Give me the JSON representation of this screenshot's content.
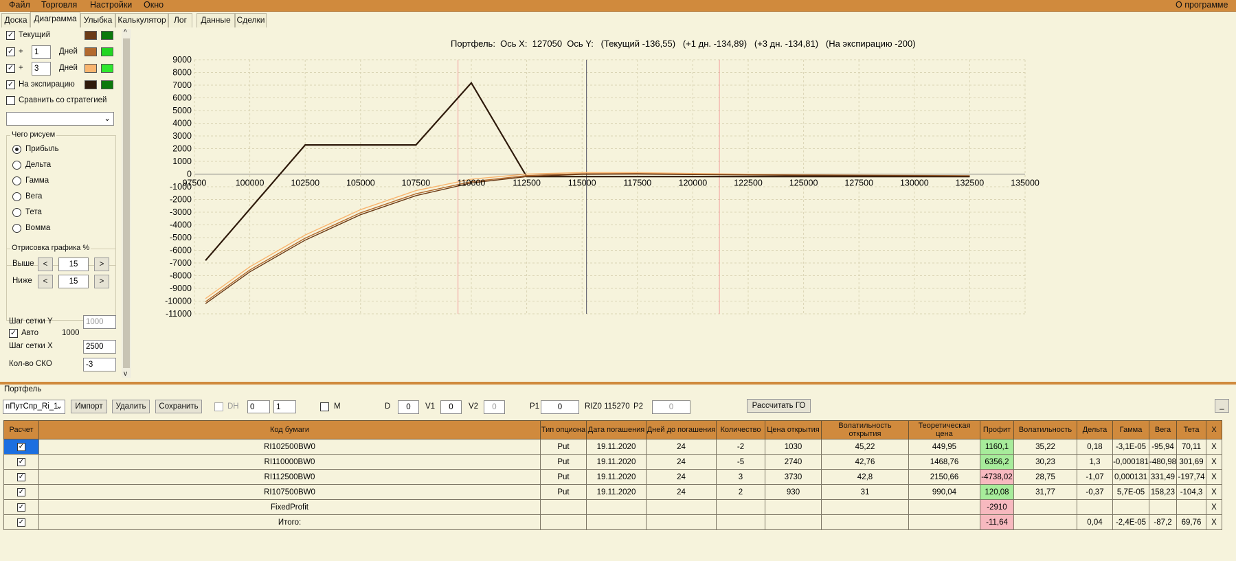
{
  "menu": {
    "items": [
      "Файл",
      "Торговля",
      "Настройки",
      "Окно"
    ],
    "about": "О программе"
  },
  "tabs": [
    "Доска",
    "Диаграмма",
    "Улыбка",
    "Калькулятор",
    "Лог",
    "Данные",
    "Сделки"
  ],
  "left": {
    "current": "Текущий",
    "plus": "+",
    "days": "Дней",
    "d1": "1",
    "d3": "3",
    "expiry": "На экспирацию",
    "compare": "Сравнить со стратегией",
    "draw_group": "Чего рисуем",
    "radios": [
      "Прибыль",
      "Дельта",
      "Гамма",
      "Вега",
      "Тета",
      "Вомма"
    ],
    "plot_group": "Отрисовка графика %",
    "above": "Выше",
    "below": "Ниже",
    "above_val": "15",
    "below_val": "15",
    "lt": "<",
    "gt": ">",
    "gridY": "Шаг сетки Y",
    "gridY_val": "1000",
    "auto": "Авто",
    "auto_val": "1000",
    "gridX": "Шаг сетки X",
    "gridX_val": "2500",
    "sko": "Кол-во СКО",
    "sko_val": "-3"
  },
  "colors": {
    "accent": "#d08a3d",
    "current": "#6b3b17",
    "d1": "#b36a2e",
    "d3": "#f9b56f",
    "expiry": "#2e1a0b",
    "green": "#0c7a0c",
    "lightgreen": "#2ee82e"
  },
  "chart_header": "Портфель:  Ось Х:  127050  Ось Y:   (Текущий -136,55)   (+1 дн. -134,89)   (+3 дн. -134,81)   (На экспирацию -200)",
  "chart_data": {
    "type": "line",
    "x_ticks": [
      97500,
      100000,
      102500,
      105000,
      107500,
      110000,
      112500,
      115000,
      117500,
      120000,
      122500,
      125000,
      127500,
      130000,
      132500,
      135000
    ],
    "y_ticks": [
      9000,
      8000,
      7000,
      6000,
      5000,
      4000,
      3000,
      2000,
      1000,
      0,
      -1000,
      -2000,
      -3000,
      -4000,
      -5000,
      -6000,
      -7000,
      -8000,
      -9000,
      -10000,
      -11000
    ],
    "xlim": [
      97500,
      135000
    ],
    "ylim": [
      -11000,
      9000
    ],
    "red_lines": [
      109400,
      121200
    ],
    "cursor_x": 115200,
    "series": [
      {
        "key": "expiry",
        "x": [
          98000,
          102500,
          107500,
          110000,
          112500,
          132500
        ],
        "y": [
          -6800,
          2290,
          2290,
          7180,
          -200,
          -200
        ]
      },
      {
        "key": "d3",
        "x": [
          98000,
          100000,
          102500,
          105000,
          107500,
          110000,
          112500,
          115000,
          117500,
          120000,
          125000,
          132500
        ],
        "y": [
          -9800,
          -7300,
          -4800,
          -2800,
          -1300,
          -400,
          0,
          120,
          120,
          40,
          -60,
          -130
        ]
      },
      {
        "key": "d1",
        "x": [
          98000,
          100000,
          102500,
          105000,
          107500,
          110000,
          112500,
          115000,
          117500,
          120000,
          125000,
          132500
        ],
        "y": [
          -10050,
          -7550,
          -5050,
          -3050,
          -1550,
          -600,
          -120,
          30,
          40,
          -20,
          -90,
          -140
        ]
      },
      {
        "key": "current",
        "x": [
          98000,
          100000,
          102500,
          105000,
          107500,
          110000,
          112500,
          115000,
          117500,
          120000,
          125000,
          132500
        ],
        "y": [
          -10200,
          -7700,
          -5200,
          -3200,
          -1700,
          -700,
          -200,
          -20,
          0,
          -40,
          -110,
          -150
        ]
      }
    ]
  },
  "portfolio": {
    "label": "Портфель",
    "combo": "пПутСпр_Ri_1",
    "import": "Импорт",
    "delete": "Удалить",
    "save": "Сохранить",
    "dh": "DH",
    "s1": "0",
    "s2": "1",
    "m": "M",
    "d_label": "D",
    "d": "0",
    "v1_label": "V1",
    "v1": "0",
    "v2_label": "V2",
    "v2": "0",
    "p1_label": "P1",
    "p1": "0",
    "riz": "RIZ0 115270",
    "p2_label": "P2",
    "p2": "0",
    "calc": "Рассчитать ГО",
    "min": "_"
  },
  "table": {
    "headers": [
      "Расчет",
      "Код бумаги",
      "Тип опциона",
      "Дата погашения",
      "Дней до погашения",
      "Количество",
      "Цена открытия",
      "Волатильность открытия",
      "Теоретическая цена",
      "Профит",
      "Волатильность",
      "Дельта",
      "Гамма",
      "Вега",
      "Тета",
      "X"
    ],
    "rows": [
      [
        "RI102500BW0",
        "Put",
        "19.11.2020",
        "24",
        "-2",
        "1030",
        "45,22",
        "449,95",
        "1160,1",
        "35,22",
        "0,18",
        "-3,1E-05",
        "-95,94",
        "70,11",
        "X"
      ],
      [
        "RI110000BW0",
        "Put",
        "19.11.2020",
        "24",
        "-5",
        "2740",
        "42,76",
        "1468,76",
        "6356,2",
        "30,23",
        "1,3",
        "-0,000181",
        "-480,98",
        "301,69",
        "X"
      ],
      [
        "RI112500BW0",
        "Put",
        "19.11.2020",
        "24",
        "3",
        "3730",
        "42,8",
        "2150,66",
        "-4738,02",
        "28,75",
        "-1,07",
        "0,000131",
        "331,49",
        "-197,74",
        "X"
      ],
      [
        "RI107500BW0",
        "Put",
        "19.11.2020",
        "24",
        "2",
        "930",
        "31",
        "990,04",
        "120,08",
        "31,77",
        "-0,37",
        "5,7E-05",
        "158,23",
        "-104,3",
        "X"
      ],
      [
        "FixedProfit",
        "",
        "",
        "",
        "",
        "",
        "",
        "",
        "-2910",
        "",
        "",
        "",
        "",
        "",
        "X"
      ],
      [
        "Итого:",
        "",
        "",
        "",
        "",
        "",
        "",
        "",
        "-11,64",
        "",
        "0,04",
        "-2,4E-05",
        "-87,2",
        "69,76",
        "X"
      ]
    ],
    "profit_colors": [
      "g",
      "g",
      "r",
      "g",
      "r",
      "r"
    ]
  }
}
